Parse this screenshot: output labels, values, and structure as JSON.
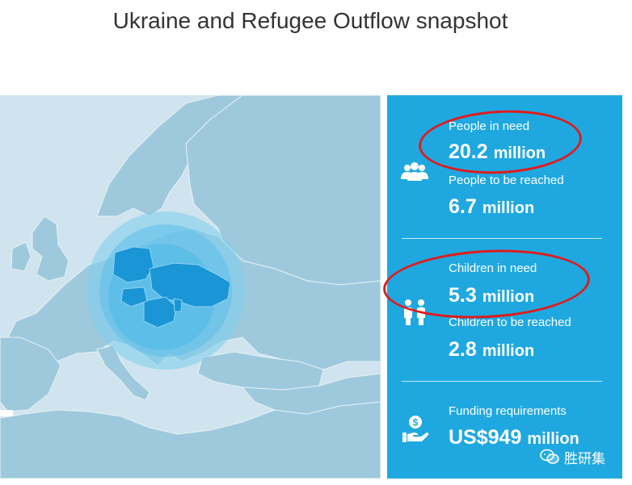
{
  "header": {
    "title": "Ukraine and Refugee Outflow snapshot"
  },
  "stats": [
    {
      "label": "People in need",
      "number": "20.2",
      "unit": "million",
      "icon": "people-group-icon"
    },
    {
      "label": "People to be reached",
      "number": "6.7",
      "unit": "million"
    },
    {
      "label": "Children in need",
      "number": "5.3",
      "unit": "million",
      "icon": "children-icon"
    },
    {
      "label": "Children to be reached",
      "number": "2.8",
      "unit": "million"
    },
    {
      "label": "Funding requirements",
      "number": "US$949",
      "unit": "million",
      "icon": "funding-hand-icon"
    }
  ],
  "watermark": {
    "text": "胜研集",
    "icon": "wechat-icon"
  },
  "colors": {
    "stats_background": "#1fa8e0",
    "map_water": "#cfe4ee",
    "map_land": "#9ec9dc",
    "highlight_country": "#1a95d6",
    "highlight_circle": "#5cc0ea",
    "annotation_ellipse": "#e01b1b"
  }
}
